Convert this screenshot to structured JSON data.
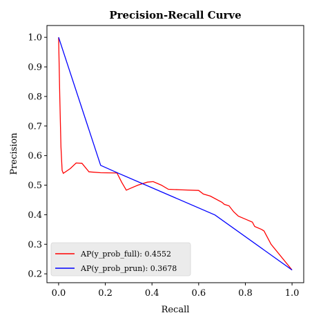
{
  "chart_data": {
    "type": "line",
    "title": "Precision-Recall Curve",
    "xlabel": "Recall",
    "ylabel": "Precision",
    "xlim": [
      -0.05,
      1.05
    ],
    "ylim": [
      0.17,
      1.04
    ],
    "xticks": [
      0.0,
      0.2,
      0.4,
      0.6,
      0.8,
      1.0
    ],
    "xtick_labels": [
      "0.0",
      "0.2",
      "0.4",
      "0.6",
      "0.8",
      "1.0"
    ],
    "yticks": [
      0.2,
      0.3,
      0.4,
      0.5,
      0.6,
      0.7,
      0.8,
      0.9,
      1.0
    ],
    "ytick_labels": [
      "0.2",
      "0.3",
      "0.4",
      "0.5",
      "0.6",
      "0.7",
      "0.8",
      "0.9",
      "1.0"
    ],
    "grid": false,
    "legend_position": "bottom-left",
    "series": [
      {
        "name": "AP(y_prob_full): 0.4552",
        "color": "#ff0000",
        "points": [
          [
            0.0,
            1.0
          ],
          [
            0.005,
            0.8
          ],
          [
            0.01,
            0.63
          ],
          [
            0.015,
            0.55
          ],
          [
            0.02,
            0.54
          ],
          [
            0.05,
            0.556
          ],
          [
            0.075,
            0.575
          ],
          [
            0.1,
            0.574
          ],
          [
            0.13,
            0.545
          ],
          [
            0.18,
            0.542
          ],
          [
            0.25,
            0.541
          ],
          [
            0.27,
            0.51
          ],
          [
            0.29,
            0.483
          ],
          [
            0.31,
            0.49
          ],
          [
            0.34,
            0.5
          ],
          [
            0.38,
            0.51
          ],
          [
            0.405,
            0.512
          ],
          [
            0.44,
            0.5
          ],
          [
            0.47,
            0.486
          ],
          [
            0.53,
            0.484
          ],
          [
            0.6,
            0.482
          ],
          [
            0.62,
            0.47
          ],
          [
            0.65,
            0.463
          ],
          [
            0.7,
            0.442
          ],
          [
            0.71,
            0.435
          ],
          [
            0.73,
            0.43
          ],
          [
            0.75,
            0.41
          ],
          [
            0.77,
            0.395
          ],
          [
            0.8,
            0.385
          ],
          [
            0.83,
            0.375
          ],
          [
            0.84,
            0.36
          ],
          [
            0.87,
            0.35
          ],
          [
            0.88,
            0.345
          ],
          [
            0.89,
            0.33
          ],
          [
            0.91,
            0.3
          ],
          [
            1.0,
            0.213
          ]
        ]
      },
      {
        "name": "AP(y_prob_prun): 0.3678",
        "color": "#0000ff",
        "points": [
          [
            0.0,
            1.0
          ],
          [
            0.18,
            0.567
          ],
          [
            0.26,
            0.539
          ],
          [
            0.67,
            0.399
          ],
          [
            1.0,
            0.213
          ]
        ]
      }
    ]
  }
}
